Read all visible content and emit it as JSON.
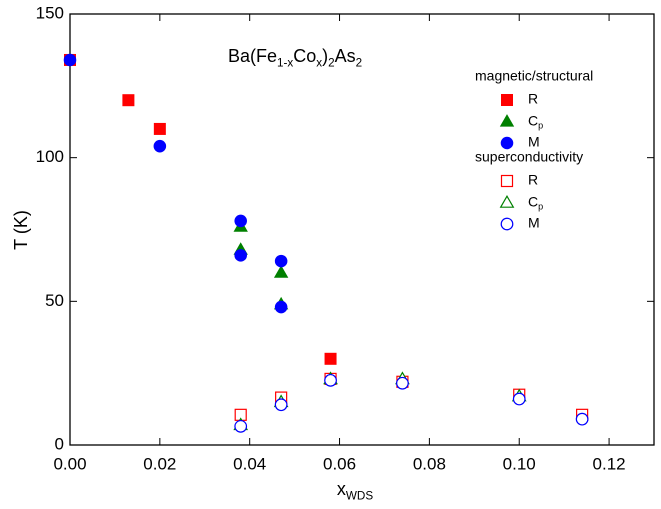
{
  "chart_data": {
    "type": "scatter",
    "title": [
      {
        "text": "Ba(Fe"
      },
      {
        "text": "1-x",
        "sub": true
      },
      {
        "text": "Co"
      },
      {
        "text": "x",
        "sub": true
      },
      {
        "text": ")"
      },
      {
        "text": "2",
        "sub": true
      },
      {
        "text": "As"
      },
      {
        "text": "2",
        "sub": true
      }
    ],
    "x_label": [
      {
        "text": "x"
      },
      {
        "text": "WDS",
        "sub": true
      }
    ],
    "y_label": "T (K)",
    "xlim": [
      0,
      0.13
    ],
    "ylim": [
      0,
      150
    ],
    "xticks": [
      {
        "value": 0,
        "label": "0.00"
      },
      {
        "value": 0.02,
        "label": "0.02"
      },
      {
        "value": 0.04,
        "label": "0.04"
      },
      {
        "value": 0.06,
        "label": "0.06"
      },
      {
        "value": 0.08,
        "label": "0.08"
      },
      {
        "value": 0.1,
        "label": "0.10"
      },
      {
        "value": 0.12,
        "label": "0.12"
      }
    ],
    "yticks": [
      0,
      50,
      100,
      150
    ],
    "legend_titles": [
      "magnetic/structural",
      "superconductivity"
    ],
    "series": [
      {
        "name": "R",
        "color": "#ff0000",
        "marker": "square",
        "filled": true,
        "x": [
          0,
          0.013,
          0.02,
          0.058
        ],
        "values": [
          134,
          120,
          110,
          30
        ]
      },
      {
        "name": [
          {
            "text": "C"
          },
          {
            "text": "p",
            "sub": true
          }
        ],
        "color": "#008000",
        "marker": "triangle",
        "filled": true,
        "x": [
          0.038,
          0.038,
          0.047,
          0.047
        ],
        "values": [
          76,
          68,
          60,
          49
        ]
      },
      {
        "name": "M",
        "color": "#0000ff",
        "marker": "circle",
        "filled": true,
        "x": [
          0,
          0.02,
          0.038,
          0.038,
          0.047,
          0.047
        ],
        "values": [
          134,
          104,
          78,
          66,
          64,
          48
        ]
      },
      {
        "name": "R",
        "color": "#ff0000",
        "marker": "square",
        "filled": false,
        "x": [
          0.038,
          0.047,
          0.058,
          0.074,
          0.1,
          0.114
        ],
        "values": [
          10.5,
          16.5,
          23,
          22,
          17.5,
          10.5
        ]
      },
      {
        "name": [
          {
            "text": "C"
          },
          {
            "text": "p",
            "sub": true
          }
        ],
        "color": "#008000",
        "marker": "triangle",
        "filled": false,
        "x": [
          0.038,
          0.047,
          0.058,
          0.074,
          0.1
        ],
        "values": [
          7,
          15,
          23,
          23,
          17
        ]
      },
      {
        "name": "M",
        "color": "#0000ff",
        "marker": "circle",
        "filled": false,
        "x": [
          0.038,
          0.047,
          0.058,
          0.074,
          0.1,
          0.114
        ],
        "values": [
          6.5,
          14,
          22.5,
          21.5,
          16,
          9
        ]
      }
    ]
  }
}
